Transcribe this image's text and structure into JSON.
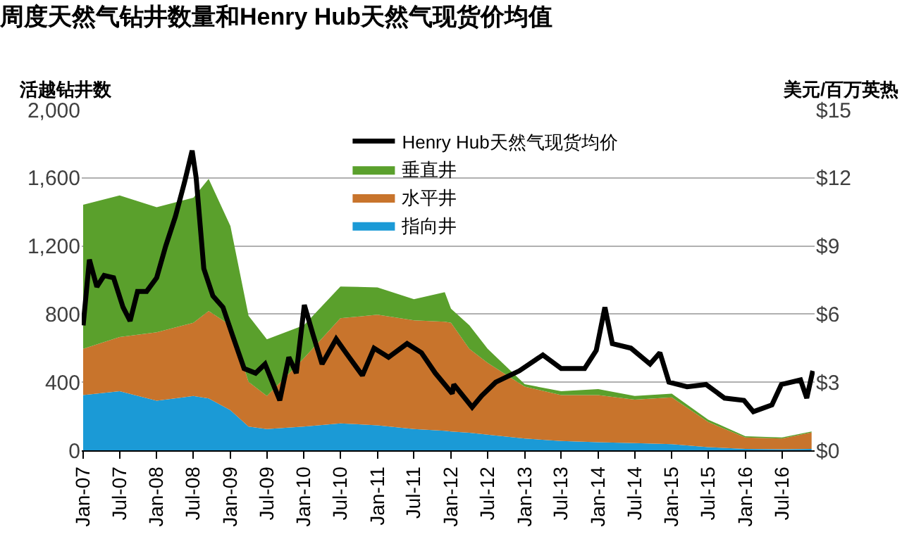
{
  "chart_data": {
    "type": "area",
    "stacked": true,
    "title": "周度天然气钻井数量和Henry Hub天然气现货价均值",
    "ylabel": "活越钻井数",
    "y2label": "美元/百万英热",
    "x": [
      "2007-01-01",
      "2007-07-01",
      "2008-01-01",
      "2008-07-01",
      "2008-09-15",
      "2009-01-01",
      "2009-04-01",
      "2009-07-01",
      "2010-01-01",
      "2010-07-01",
      "2011-01-01",
      "2011-07-01",
      "2011-12-01",
      "2012-01-01",
      "2012-04-01",
      "2012-07-01",
      "2013-01-01",
      "2013-07-01",
      "2014-01-01",
      "2014-07-01",
      "2015-01-01",
      "2015-07-01",
      "2016-01-01",
      "2016-07-01",
      "2016-11-25"
    ],
    "series": [
      {
        "name": "指向井",
        "color": "#1b9ad6",
        "values": [
          324,
          347,
          291,
          319,
          305,
          236,
          139,
          125,
          139,
          158,
          147,
          125,
          115,
          111,
          103,
          92,
          69,
          55,
          47,
          42,
          36,
          19,
          8,
          6,
          8
        ]
      },
      {
        "name": "水平井",
        "color": "#c8742c",
        "values": [
          272,
          318,
          402,
          430,
          513,
          499,
          263,
          194,
          402,
          618,
          649,
          638,
          640,
          638,
          493,
          421,
          305,
          269,
          277,
          255,
          275,
          147,
          67,
          63,
          97
        ]
      },
      {
        "name": "垂直井",
        "color": "#5aa02c",
        "values": [
          846,
          832,
          735,
          735,
          776,
          582,
          388,
          333,
          194,
          186,
          161,
          124,
          174,
          83,
          139,
          83,
          14,
          23,
          36,
          22,
          22,
          14,
          8,
          6,
          6
        ]
      },
      {
        "name": "Henry Hub天然气现货均价",
        "type": "line",
        "axis": "y2",
        "color": "#000000",
        "x": [
          "2007-01-01",
          "2007-02-01",
          "2007-03-10",
          "2007-04-15",
          "2007-06-01",
          "2007-07-18",
          "2007-08-22",
          "2007-09-28",
          "2007-11-12",
          "2008-01-01",
          "2008-02-15",
          "2008-04-03",
          "2008-05-18",
          "2008-06-25",
          "2008-07-15",
          "2008-08-22",
          "2008-10-06",
          "2008-11-25",
          "2009-01-10",
          "2009-03-10",
          "2009-05-06",
          "2009-06-22",
          "2009-09-03",
          "2009-10-18",
          "2009-11-24",
          "2010-01-03",
          "2010-02-15",
          "2010-04-01",
          "2010-06-10",
          "2010-07-28",
          "2010-10-18",
          "2010-12-15",
          "2011-02-25",
          "2011-05-28",
          "2011-08-07",
          "2011-10-15",
          "2012-01-07",
          "2012-01-15",
          "2012-04-15",
          "2012-06-01",
          "2012-08-10",
          "2012-12-05",
          "2013-04-01",
          "2013-07-01",
          "2013-10-25",
          "2013-12-22",
          "2014-02-03",
          "2014-03-12",
          "2014-06-12",
          "2014-09-15",
          "2014-11-03",
          "2014-12-18",
          "2015-03-18",
          "2015-06-20",
          "2015-09-20",
          "2015-12-25",
          "2016-02-10",
          "2016-05-12",
          "2016-06-28",
          "2016-10-01",
          "2016-11-01",
          "2016-12-01"
        ],
        "values": [
          5.5,
          8.4,
          7.2,
          7.7,
          7.6,
          6.3,
          5.7,
          7.0,
          7.0,
          7.6,
          9.0,
          10.3,
          11.8,
          13.2,
          12.0,
          8.0,
          6.8,
          6.3,
          5.1,
          3.6,
          3.4,
          3.8,
          2.2,
          4.1,
          3.4,
          6.4,
          5.1,
          3.8,
          4.9,
          4.3,
          3.3,
          4.5,
          4.1,
          4.7,
          4.3,
          3.4,
          2.5,
          2.9,
          1.9,
          2.4,
          3.0,
          3.5,
          4.2,
          3.6,
          3.6,
          4.4,
          6.3,
          4.7,
          4.5,
          3.8,
          4.3,
          3.0,
          2.8,
          2.9,
          2.3,
          2.2,
          1.7,
          2.0,
          2.9,
          3.1,
          2.3,
          3.5
        ]
      }
    ],
    "xlim": [
      "2006-12-25",
      "2016-12-10"
    ],
    "xticks": [
      {
        "value": "2007-01-01",
        "label": "Jan-07"
      },
      {
        "value": "2007-07-01",
        "label": "Jul-07"
      },
      {
        "value": "2008-01-01",
        "label": "Jan-08"
      },
      {
        "value": "2008-07-01",
        "label": "Jul-08"
      },
      {
        "value": "2009-01-01",
        "label": "Jan-09"
      },
      {
        "value": "2009-07-01",
        "label": "Jul-09"
      },
      {
        "value": "2010-01-01",
        "label": "Jan-10"
      },
      {
        "value": "2010-07-01",
        "label": "Jul-10"
      },
      {
        "value": "2011-01-01",
        "label": "Jan-11"
      },
      {
        "value": "2011-07-01",
        "label": "Jul-11"
      },
      {
        "value": "2012-01-01",
        "label": "Jan-12"
      },
      {
        "value": "2012-07-01",
        "label": "Jul-12"
      },
      {
        "value": "2013-01-01",
        "label": "Jan-13"
      },
      {
        "value": "2013-07-01",
        "label": "Jul-13"
      },
      {
        "value": "2014-01-01",
        "label": "Jan-14"
      },
      {
        "value": "2014-07-01",
        "label": "Jul-14"
      },
      {
        "value": "2015-01-01",
        "label": "Jan-15"
      },
      {
        "value": "2015-07-01",
        "label": "Jul-15"
      },
      {
        "value": "2016-01-01",
        "label": "Jan-16"
      },
      {
        "value": "2016-07-01",
        "label": "Jul-16"
      }
    ],
    "ylim": [
      0,
      2000
    ],
    "yticks": [
      {
        "value": 0,
        "label": "0"
      },
      {
        "value": 400,
        "label": "400"
      },
      {
        "value": 800,
        "label": "800"
      },
      {
        "value": 1200,
        "label": "1,200"
      },
      {
        "value": 1600,
        "label": "1,600"
      },
      {
        "value": 2000,
        "label": "2,000"
      }
    ],
    "y2lim": [
      0,
      15
    ],
    "y2ticks": [
      {
        "value": 0,
        "label": "$0"
      },
      {
        "value": 3,
        "label": "$3"
      },
      {
        "value": 6,
        "label": "$6"
      },
      {
        "value": 9,
        "label": "$9"
      },
      {
        "value": 12,
        "label": "$12"
      },
      {
        "value": 15,
        "label": "$15"
      }
    ],
    "grid": "y",
    "legend": "top",
    "line_style": "solid",
    "marker": "none"
  }
}
